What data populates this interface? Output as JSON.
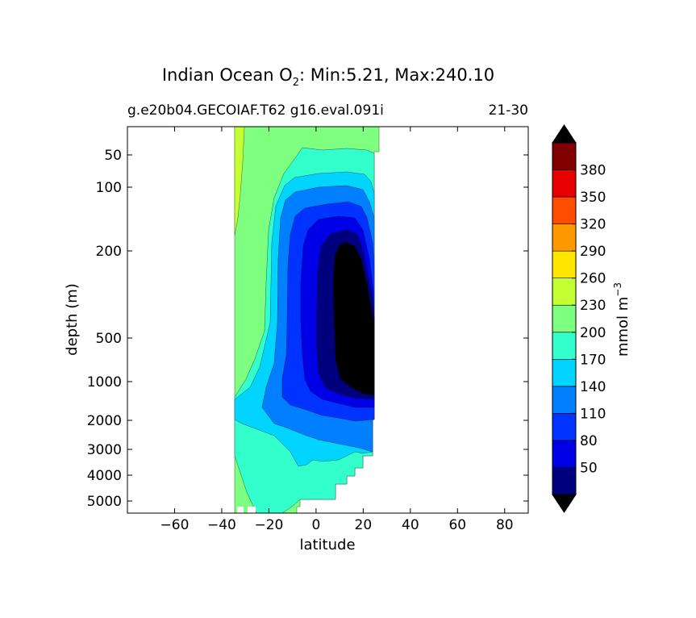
{
  "chart_data": {
    "type": "heatmap",
    "title": "Indian Ocean O",
    "title_subscript": "2",
    "title_rest": ": Min:5.21, Max:240.10",
    "subtitle_left": "g.e20b04.GECOIAF.T62 g16.eval.091i",
    "subtitle_right": "21-30",
    "xlabel": "latitude",
    "ylabel": "depth (m)",
    "xlim": [
      -80,
      90
    ],
    "x_ticks": [
      -60,
      -40,
      -20,
      0,
      20,
      40,
      60,
      80
    ],
    "x_tick_labels": [
      "−60",
      "−40",
      "−20",
      "0",
      "20",
      "40",
      "60",
      "80"
    ],
    "y_ticks": [
      50,
      100,
      200,
      500,
      1000,
      2000,
      3000,
      4000,
      5000
    ],
    "y_tick_labels": [
      "50",
      "100",
      "200",
      "500",
      "1000",
      "2000",
      "3000",
      "4000",
      "5000"
    ],
    "colorbar": {
      "label": "mmol m",
      "label_superscript": "−3",
      "levels": [
        50,
        80,
        110,
        140,
        170,
        200,
        230,
        260,
        290,
        320,
        350,
        380
      ],
      "level_labels": [
        "50",
        "80",
        "110",
        "140",
        "170",
        "200",
        "230",
        "260",
        "290",
        "320",
        "350",
        "380"
      ],
      "colors": [
        "#00007f",
        "#0000e6",
        "#0033ff",
        "#0080ff",
        "#00d4ff",
        "#33ffcc",
        "#7fff7f",
        "#c4ff33",
        "#ffe600",
        "#ff9900",
        "#ff4d00",
        "#e60000",
        "#800000"
      ],
      "under_color": "#000000",
      "over_color": "#000000"
    },
    "stat_min": 5.21,
    "stat_max": 240.1
  }
}
